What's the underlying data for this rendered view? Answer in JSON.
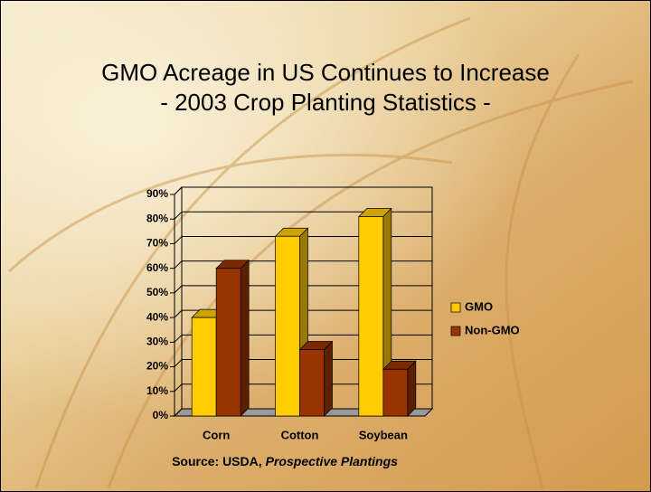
{
  "chart_data": {
    "type": "bar3d",
    "title": [
      "GMO Acreage in US Continues to Increase",
      "- 2003 Crop Planting Statistics -"
    ],
    "source": "Source: USDA,",
    "source_publication": "Prospective Plantings",
    "categories": [
      "Corn",
      "Cotton",
      "Soybean"
    ],
    "series": [
      {
        "name": "GMO",
        "color": "#ffcc00",
        "values": [
          40,
          73,
          81
        ]
      },
      {
        "name": "Non-GMO",
        "color": "#993300",
        "values": [
          60,
          27,
          19
        ]
      }
    ],
    "ylim": [
      0,
      90
    ],
    "yticks": [
      {
        "value": 0,
        "label": "0%"
      },
      {
        "value": 10,
        "label": "10%"
      },
      {
        "value": 20,
        "label": "20%"
      },
      {
        "value": 30,
        "label": "30%"
      },
      {
        "value": 40,
        "label": "40%"
      },
      {
        "value": 50,
        "label": "50%"
      },
      {
        "value": 60,
        "label": "60%"
      },
      {
        "value": 70,
        "label": "70%"
      },
      {
        "value": 80,
        "label": "80%"
      },
      {
        "value": 90,
        "label": "90%"
      }
    ],
    "grid": true,
    "legend": "right"
  }
}
